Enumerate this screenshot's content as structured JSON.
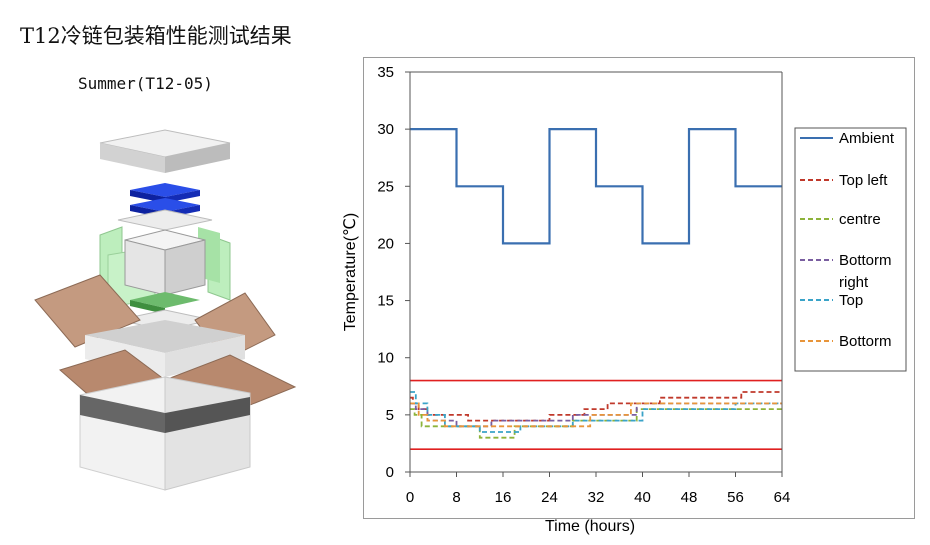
{
  "page": {
    "title": "T12冷链包装箱性能测试结果",
    "subtitle": "Summer(T12-05)"
  },
  "illustration": {
    "name": "exploded-packaging-box",
    "colors": {
      "cardboard": "#b88a6e",
      "panels": "#bfeec0",
      "icepacks": "#1d3fd0",
      "lid": "#e2e2e2"
    }
  },
  "chart_data": {
    "type": "line",
    "title": "",
    "xlabel": "Time (hours)",
    "ylabel": "Temperature(℃)",
    "xlim": [
      0,
      64
    ],
    "ylim": [
      0,
      35
    ],
    "xticks": [
      "0",
      "8",
      "16",
      "24",
      "32",
      "40",
      "48",
      "56",
      "64"
    ],
    "yticks": [
      "0",
      "5",
      "10",
      "15",
      "20",
      "25",
      "30",
      "35"
    ],
    "grid": false,
    "legend_position": "right",
    "limit_lines": [
      {
        "y": 8,
        "color": "#e02020"
      },
      {
        "y": 2,
        "color": "#e02020"
      }
    ],
    "series": [
      {
        "name": "Ambient",
        "color": "#3a6fb0",
        "dash": "solid",
        "x": [
          0,
          8,
          8,
          16,
          16,
          24,
          24,
          32,
          32,
          40,
          40,
          48,
          48,
          56,
          56,
          64
        ],
        "y": [
          30,
          30,
          25,
          25,
          20,
          20,
          30,
          30,
          25,
          25,
          20,
          20,
          30,
          30,
          25,
          25
        ]
      },
      {
        "name": "Top left",
        "color": "#c0392b",
        "dash": "dashed",
        "x": [
          0,
          0.5,
          0.5,
          1.5,
          1.5,
          3,
          3,
          10,
          10,
          13,
          13,
          24,
          24,
          30,
          30,
          34,
          34,
          43,
          43,
          57,
          57,
          64
        ],
        "y": [
          6.5,
          6.5,
          6,
          6,
          5.5,
          5.5,
          5,
          5,
          4.5,
          4.5,
          4.5,
          4.5,
          5,
          5,
          5.5,
          5.5,
          6,
          6,
          6.5,
          6.5,
          7,
          7
        ]
      },
      {
        "name": "centre",
        "color": "#8db33a",
        "dash": "dashed",
        "x": [
          0,
          0.8,
          0.8,
          2,
          2,
          5,
          5,
          12,
          12,
          18,
          18,
          28,
          28,
          39,
          39,
          64
        ],
        "y": [
          5.5,
          5.5,
          5,
          5,
          4,
          4,
          4,
          4,
          3,
          3,
          4,
          4,
          4.5,
          4.5,
          5.5,
          5.5
        ]
      },
      {
        "name": "Bottorm right",
        "color": "#7a5ea0",
        "dash": "dashed",
        "x": [
          0,
          1,
          1,
          3,
          3,
          8,
          8,
          14,
          14,
          28,
          28,
          39,
          39,
          64
        ],
        "y": [
          6,
          6,
          5.5,
          5.5,
          4.5,
          4.5,
          4,
          4,
          4.5,
          4.5,
          5,
          5,
          6,
          6
        ]
      },
      {
        "name": "Top",
        "color": "#3aa3c8",
        "dash": "dashed",
        "x": [
          0,
          1,
          1,
          3,
          3,
          6,
          6,
          12,
          12,
          19,
          19,
          28,
          28,
          40,
          40,
          56,
          56,
          64
        ],
        "y": [
          7,
          7,
          6,
          6,
          5,
          5,
          4,
          4,
          3.5,
          3.5,
          4,
          4,
          4.5,
          4.5,
          5.5,
          5.5,
          6,
          6
        ]
      },
      {
        "name": "Bottorm",
        "color": "#e8953a",
        "dash": "dashed",
        "x": [
          0,
          1.5,
          1.5,
          3,
          3,
          6,
          6,
          22,
          22,
          31,
          31,
          38,
          38,
          64
        ],
        "y": [
          6,
          6,
          5,
          5,
          4.5,
          4.5,
          4,
          4,
          4,
          4,
          5,
          5,
          6,
          6
        ]
      }
    ]
  }
}
